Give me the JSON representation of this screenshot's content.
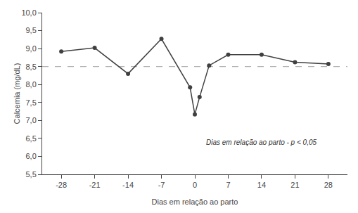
{
  "chart_data": {
    "type": "line",
    "x": [
      -28,
      -21,
      -14,
      -7,
      -1,
      0,
      1,
      3,
      7,
      14,
      21,
      28
    ],
    "series": [
      {
        "values": [
          8.92,
          9.02,
          8.3,
          9.27,
          7.92,
          7.17,
          7.65,
          8.53,
          8.83,
          8.83,
          8.62,
          8.57
        ],
        "color": "#404040",
        "marker": "circle",
        "line_style": "solid"
      }
    ],
    "reference_line": {
      "y": 8.5,
      "color": "#b0b0b0",
      "line_style": "dashed"
    },
    "xlabel": "Dias em relação ao parto",
    "ylabel": "Calcemia (mg/dL)",
    "annotation": {
      "text": "Dias em relação ao parto - p < 0,05",
      "x": 2,
      "y": 6.4
    },
    "xlim": [
      -32,
      32
    ],
    "ylim": [
      5.5,
      10.0
    ],
    "xticks": [
      -28,
      -21,
      -14,
      -7,
      0,
      7,
      14,
      21,
      28
    ],
    "yticks": [
      {
        "value": 5.5,
        "label": "5,5"
      },
      {
        "value": 6.0,
        "label": "6,0"
      },
      {
        "value": 6.5,
        "label": "6,5"
      },
      {
        "value": 7.0,
        "label": "7,0"
      },
      {
        "value": 7.5,
        "label": "7,5"
      },
      {
        "value": 8.0,
        "label": "8,0"
      },
      {
        "value": 8.5,
        "label": "8,5"
      },
      {
        "value": 9.0,
        "label": "9,0"
      },
      {
        "value": 9.5,
        "label": "9,5"
      },
      {
        "value": 10.0,
        "label": "10,0"
      }
    ],
    "grid": false
  }
}
